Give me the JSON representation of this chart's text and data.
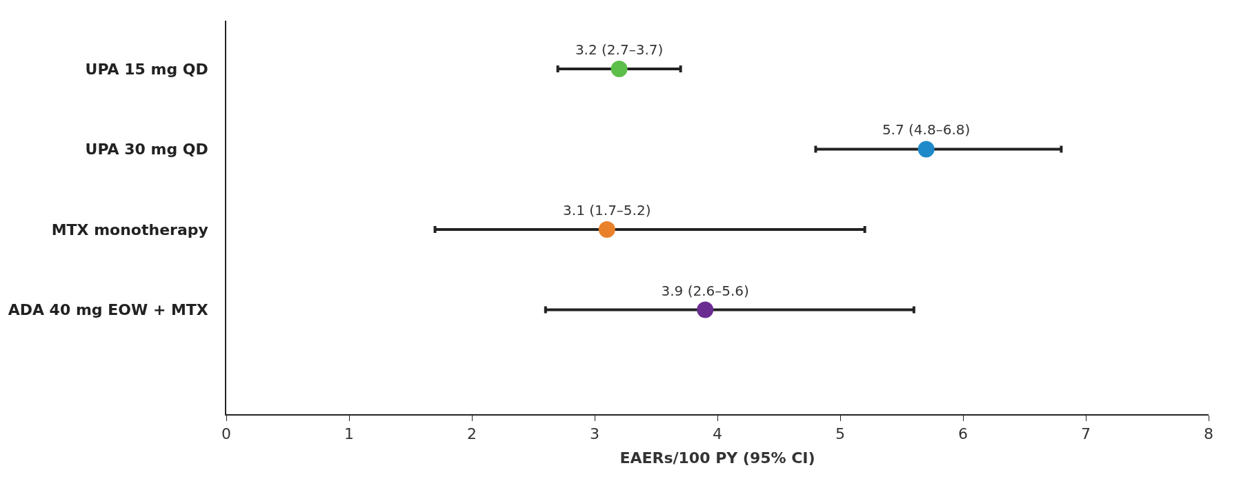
{
  "chart_data": {
    "type": "scatter",
    "orientation": "horizontal",
    "xlabel": "EAERs/100 PY (95% CI)",
    "categories": [
      "UPA 15 mg QD",
      "UPA 30 mg QD",
      "MTX monotherapy",
      "ADA 40 mg EOW + MTX"
    ],
    "values": [
      3.2,
      5.7,
      3.1,
      3.9
    ],
    "errors": [
      [
        2.7,
        3.7
      ],
      [
        4.8,
        6.8
      ],
      [
        1.7,
        5.2
      ],
      [
        2.6,
        5.6
      ]
    ],
    "value_labels": [
      "3.2 (2.7–3.7)",
      "5.7 (4.8–6.8)",
      "3.1 (1.7–5.2)",
      "3.9 (2.6–5.6)"
    ],
    "colors": [
      "#5cbf4a",
      "#1f8ac9",
      "#e8812a",
      "#6a2c91"
    ],
    "xlim": [
      0,
      8
    ],
    "xticks": [
      0,
      1,
      2,
      3,
      4,
      5,
      6,
      7,
      8
    ],
    "marker": "circle",
    "legend": false
  }
}
